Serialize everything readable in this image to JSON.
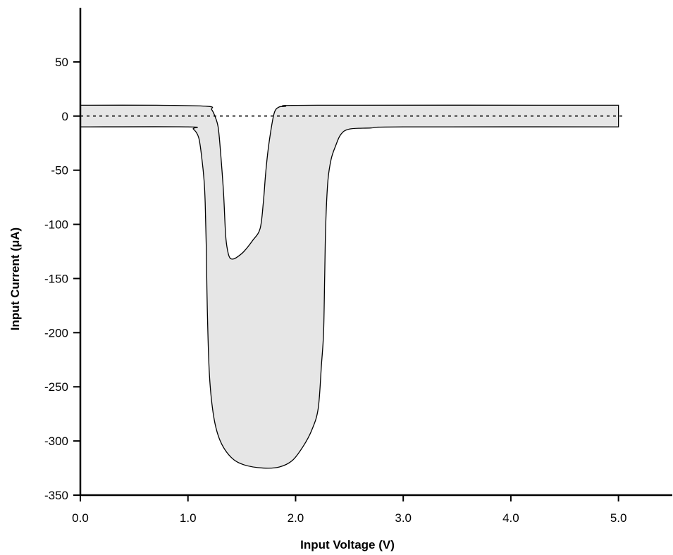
{
  "chart_data": {
    "type": "area",
    "title": "",
    "xlabel": "Input Voltage (V)",
    "ylabel": "Input Current (μA)",
    "xlim": [
      0,
      5.5
    ],
    "ylim": [
      -350,
      100
    ],
    "x_ticks": [
      0,
      1,
      2,
      3,
      4,
      5
    ],
    "x_tick_labels": [
      "0.0",
      "1.0",
      "2.0",
      "3.0",
      "4.0",
      "5.0"
    ],
    "y_ticks": [
      50,
      0,
      -50,
      -100,
      -150,
      -200,
      -250,
      -300,
      -350
    ],
    "y_tick_labels": [
      "50",
      "0",
      "-50",
      "-100",
      "-150",
      "-200",
      "-250",
      "-300",
      "-350"
    ],
    "grid": false,
    "fill_color": "#e6e6e6",
    "line_color": "#000000",
    "reference_line": {
      "y": 0,
      "style": "dashed"
    },
    "series": [
      {
        "role": "upper_bound",
        "x": [
          0.0,
          0.7,
          1.18,
          1.22,
          1.25,
          1.28,
          1.3,
          1.33,
          1.35,
          1.37,
          1.39,
          1.42,
          1.46,
          1.52,
          1.6,
          1.67,
          1.7,
          1.72,
          1.74,
          1.76,
          1.79,
          1.81,
          1.84,
          1.9,
          2.2,
          5.0
        ],
        "y": [
          10,
          10,
          9,
          6,
          0,
          -10,
          -30,
          -70,
          -110,
          -125,
          -131,
          -132,
          -130,
          -125,
          -115,
          -104,
          -80,
          -55,
          -35,
          -20,
          -2,
          5,
          8,
          9,
          10,
          10
        ]
      },
      {
        "role": "lower_bound",
        "x": [
          0.0,
          1.0,
          1.05,
          1.1,
          1.13,
          1.15,
          1.16,
          1.17,
          1.18,
          1.2,
          1.24,
          1.3,
          1.4,
          1.52,
          1.7,
          1.85,
          1.97,
          2.07,
          2.15,
          2.21,
          2.24,
          2.26,
          2.27,
          2.28,
          2.3,
          2.33,
          2.37,
          2.42,
          2.5,
          2.7,
          3.0,
          5.0
        ],
        "y": [
          -10,
          -10,
          -12,
          -20,
          -40,
          -60,
          -80,
          -120,
          -180,
          -240,
          -278,
          -300,
          -315,
          -322,
          -325,
          -324,
          -318,
          -305,
          -290,
          -270,
          -230,
          -200,
          -150,
          -100,
          -60,
          -40,
          -28,
          -17,
          -12,
          -11,
          -10,
          -10
        ]
      }
    ]
  }
}
